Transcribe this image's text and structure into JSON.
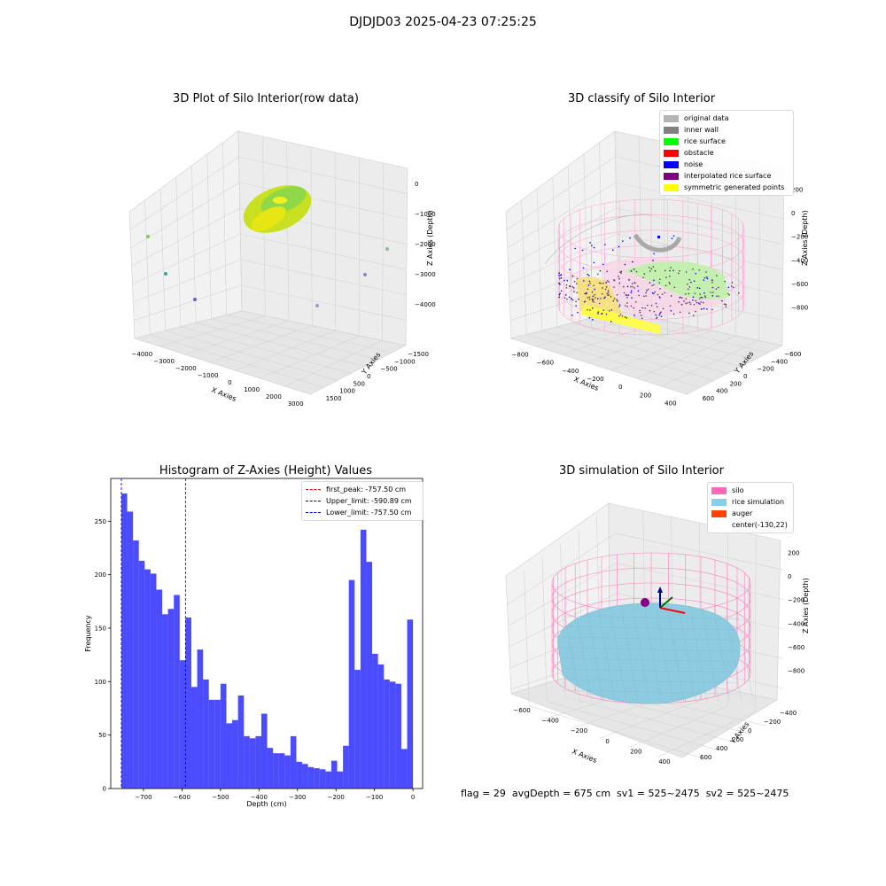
{
  "suptitle": "DJDJD03 2025-04-23 07:25:25",
  "panels": {
    "raw": {
      "title": "3D Plot of Silo Interior(row data)",
      "xlabel": "X Axies",
      "ylabel": "Y Axies",
      "zlabel": "Z Axies (Depth)",
      "xticks": [
        "−4000",
        "−3000",
        "−2000",
        "−1000",
        "0",
        "1000",
        "2000",
        "3000"
      ],
      "yticks": [
        "1500",
        "1000",
        "500",
        "0",
        "−500",
        "−1000",
        "−1500"
      ],
      "zticks": [
        "0",
        "−1000",
        "−2000",
        "−3000",
        "−4000"
      ]
    },
    "classify": {
      "title": "3D classify of Silo Interior",
      "xlabel": "X Axies",
      "ylabel": "Y Axies",
      "zlabel": "Z Axies (Depth)",
      "xticks": [
        "−800",
        "−600",
        "−400",
        "−200",
        "0",
        "200",
        "400"
      ],
      "yticks": [
        "600",
        "400",
        "200",
        "0",
        "−200",
        "−400",
        "−600"
      ],
      "zticks": [
        "200",
        "0",
        "−200",
        "−400",
        "−600",
        "−800"
      ],
      "legend": [
        {
          "label": "original data",
          "color": "#b4b4b4"
        },
        {
          "label": "inner wall",
          "color": "#808080"
        },
        {
          "label": "rice surface",
          "color": "#00ff00"
        },
        {
          "label": "obstacle",
          "color": "#ff0000"
        },
        {
          "label": "noise",
          "color": "#0000ff"
        },
        {
          "label": "interpolated rice surface",
          "color": "#800080"
        },
        {
          "label": "symmetric generated points",
          "color": "#ffff00"
        }
      ]
    },
    "histogram": {
      "title": "Histogram of Z-Axies (Height) Values",
      "xlabel": "Depth (cm)",
      "ylabel": "Frequency",
      "bar_color": "#0000ff",
      "legend": [
        {
          "label": "first_peak: -757.50 cm",
          "color": "#ff0000"
        },
        {
          "label": "Upper_limit: -590.89 cm",
          "color": "#00008b"
        },
        {
          "label": "Lower_limit: -757.50 cm",
          "color": "#0000ff"
        }
      ]
    },
    "simulation": {
      "title": "3D simulation of Silo Interior",
      "xlabel": "X Axies",
      "ylabel": "Y Axies",
      "zlabel": "Z Axies (Depth)",
      "xticks": [
        "−600",
        "−400",
        "−200",
        "0",
        "200",
        "400"
      ],
      "yticks": [
        "600",
        "400",
        "200",
        "0",
        "−200",
        "−400"
      ],
      "zticks": [
        "200",
        "0",
        "−200",
        "−400",
        "−600",
        "−800"
      ],
      "legend": [
        {
          "label": "silo",
          "color": "#ff69b4"
        },
        {
          "label": "rice simulation",
          "color": "#87ceeb"
        },
        {
          "label": "auger",
          "color": "#ff4500"
        },
        {
          "label": "center(-130,22)",
          "color": ""
        }
      ]
    }
  },
  "status_text": "flag = 29  avgDepth = 675 cm  sv1 = 525~2475  sv2 = 525~2475",
  "chart_data": [
    {
      "type": "bar",
      "title": "Histogram of Z-Axies (Height) Values",
      "xlabel": "Depth (cm)",
      "ylabel": "Frequency",
      "bin_start": -757.5,
      "bin_width": 15.15,
      "values": [
        276,
        259,
        232,
        213,
        205,
        201,
        186,
        163,
        168,
        181,
        120,
        160,
        95,
        130,
        102,
        83,
        83,
        98,
        61,
        64,
        87,
        49,
        47,
        49,
        70,
        38,
        33,
        33,
        31,
        49,
        25,
        23,
        20,
        19,
        18,
        16,
        26,
        16,
        40,
        195,
        111,
        242,
        212,
        126,
        116,
        102,
        100,
        98,
        37,
        158
      ],
      "xlim": [
        -785,
        25
      ],
      "ylim": [
        0,
        290
      ],
      "xticks": [
        -700,
        -600,
        -500,
        -400,
        -300,
        -200,
        -100,
        0
      ],
      "yticks": [
        0,
        50,
        100,
        150,
        200,
        250
      ],
      "vlines": [
        {
          "label": "first_peak: -757.50 cm",
          "x": -757.5,
          "color": "#ff0000"
        },
        {
          "label": "Upper_limit: -590.89 cm",
          "x": -590.89,
          "color": "#00008b"
        },
        {
          "label": "Lower_limit: -757.50 cm",
          "x": -757.5,
          "color": "#0000ff"
        }
      ],
      "legend_position": "top-right",
      "grid": false
    }
  ]
}
